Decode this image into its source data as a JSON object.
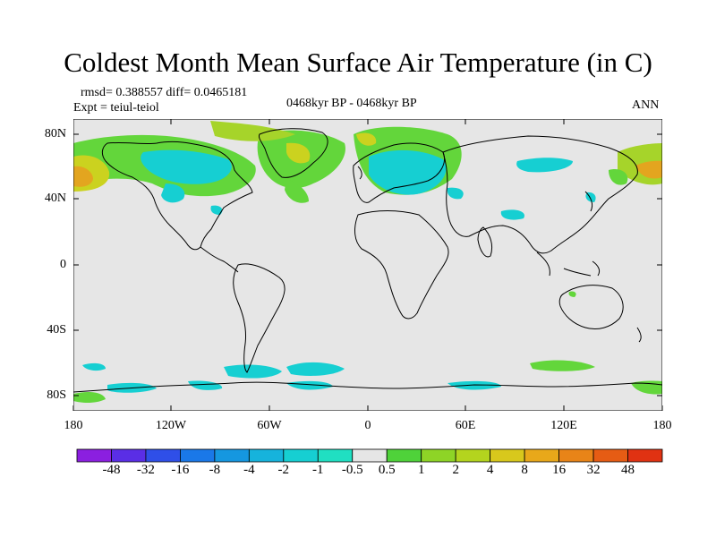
{
  "figure": {
    "title": "Coldest Month Mean Surface Air Temperature (in C)",
    "rmsd_line": "rmsd= 0.388557 diff= 0.0465181",
    "expt_line": "Expt = teiul-teiol",
    "period_line": "0468kyr BP - 0468kyr BP",
    "season": "ANN"
  },
  "axes": {
    "lat_labels": [
      "80N",
      "40N",
      "0",
      "40S",
      "80S"
    ],
    "lon_labels": [
      "180",
      "120W",
      "60W",
      "0",
      "60E",
      "120E",
      "180"
    ]
  },
  "colorbar": {
    "labels": [
      "-48",
      "-32",
      "-16",
      "-8",
      "-4",
      "-2",
      "-1",
      "-0.5",
      "0.5",
      "1",
      "2",
      "4",
      "8",
      "16",
      "32",
      "48"
    ],
    "colors": [
      "#8b1fe0",
      "#5a2ee6",
      "#2f4fe8",
      "#1a78e8",
      "#1597e0",
      "#16b3dc",
      "#16cfd2",
      "#20dfc2",
      "#e6e6e6",
      "#4fd23a",
      "#8ed426",
      "#b4d41e",
      "#d8c81c",
      "#e8a81a",
      "#e88418",
      "#e65c14",
      "#e03212"
    ]
  },
  "colors": {
    "neutral": "#e6e6e6",
    "cyan": "#16cfd2",
    "green": "#63d63b",
    "yellowgreen": "#a6d42a",
    "yellow": "#cbd21f",
    "orange": "#e3a51f"
  }
}
